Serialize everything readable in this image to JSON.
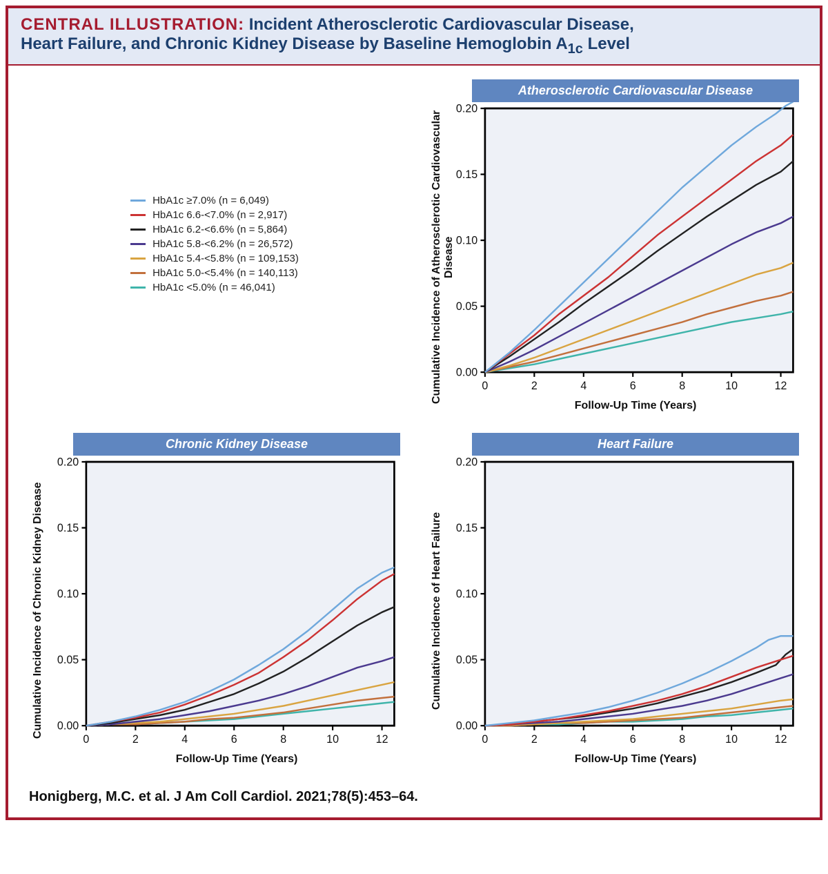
{
  "title": {
    "lead": "CENTRAL ILLUSTRATION:",
    "rest_line1": " Incident Atherosclerotic Cardiovascular Disease,",
    "rest_line2": "Heart Failure, and Chronic Kidney Disease by Baseline Hemoglobin A",
    "sub": "1c",
    "rest_line2_end": " Level"
  },
  "legend": {
    "items": [
      {
        "label": "HbA1c ≥7.0% (n = 6,049)",
        "color": "#6fa8dc"
      },
      {
        "label": "HbA1c 6.6-<7.0% (n = 2,917)",
        "color": "#cc3333"
      },
      {
        "label": "HbA1c 6.2-<6.6% (n = 5,864)",
        "color": "#222222"
      },
      {
        "label": "HbA1c 5.8-<6.2% (n = 26,572)",
        "color": "#4b3a8f"
      },
      {
        "label": "HbA1c 5.4-<5.8% (n = 109,153)",
        "color": "#d9a441"
      },
      {
        "label": "HbA1c 5.0-<5.4% (n = 140,113)",
        "color": "#c2703d"
      },
      {
        "label": "HbA1c <5.0% (n = 46,041)",
        "color": "#3fb4aa"
      }
    ]
  },
  "axis": {
    "xlabel": "Follow-Up Time (Years)",
    "xlim": [
      0,
      12.5
    ],
    "xticks": [
      0,
      2,
      4,
      6,
      8,
      10,
      12
    ],
    "ylim": [
      0,
      0.2
    ],
    "yticks": [
      0.0,
      0.05,
      0.1,
      0.15,
      0.2
    ],
    "ytick_labels": [
      "0.00",
      "0.05",
      "0.10",
      "0.15",
      "0.20"
    ]
  },
  "style": {
    "plot_bg": "#eef1f7",
    "axis_color": "#000000",
    "line_width": 2.2,
    "panel_header_bg": "#5f86c0",
    "panel_header_fg": "#ffffff",
    "frame_border": "#a51c30",
    "title_bg": "#e3e9f5",
    "tick_len": 6
  },
  "panels": {
    "ascvd": {
      "header": "Atherosclerotic Cardiovascular Disease",
      "ylabel": "Cumulative Incidence of Atherosclerotic Cardiovascular Disease",
      "series": [
        {
          "color": "#6fa8dc",
          "x": [
            0,
            1,
            2,
            3,
            4,
            5,
            6,
            7,
            8,
            9,
            10,
            11,
            11.8,
            12.2,
            12.5
          ],
          "y": [
            0,
            0.015,
            0.032,
            0.05,
            0.068,
            0.086,
            0.104,
            0.122,
            0.14,
            0.156,
            0.172,
            0.186,
            0.196,
            0.202,
            0.205
          ]
        },
        {
          "color": "#cc3333",
          "x": [
            0,
            1,
            2,
            3,
            4,
            5,
            6,
            7,
            8,
            9,
            10,
            11,
            12,
            12.5
          ],
          "y": [
            0,
            0.014,
            0.028,
            0.044,
            0.058,
            0.072,
            0.088,
            0.104,
            0.118,
            0.132,
            0.146,
            0.16,
            0.172,
            0.18
          ]
        },
        {
          "color": "#222222",
          "x": [
            0,
            1,
            2,
            3,
            4,
            5,
            6,
            7,
            8,
            9,
            10,
            11,
            12,
            12.5
          ],
          "y": [
            0,
            0.012,
            0.025,
            0.038,
            0.052,
            0.065,
            0.078,
            0.092,
            0.105,
            0.118,
            0.13,
            0.142,
            0.152,
            0.16
          ]
        },
        {
          "color": "#4b3a8f",
          "x": [
            0,
            1,
            2,
            3,
            4,
            5,
            6,
            7,
            8,
            9,
            10,
            11,
            12,
            12.5
          ],
          "y": [
            0,
            0.008,
            0.017,
            0.027,
            0.037,
            0.047,
            0.057,
            0.067,
            0.077,
            0.087,
            0.097,
            0.106,
            0.113,
            0.118
          ]
        },
        {
          "color": "#d9a441",
          "x": [
            0,
            1,
            2,
            3,
            4,
            5,
            6,
            7,
            8,
            9,
            10,
            11,
            12,
            12.5
          ],
          "y": [
            0,
            0.005,
            0.011,
            0.018,
            0.025,
            0.032,
            0.039,
            0.046,
            0.053,
            0.06,
            0.067,
            0.074,
            0.079,
            0.083
          ]
        },
        {
          "color": "#c2703d",
          "x": [
            0,
            1,
            2,
            3,
            4,
            5,
            6,
            7,
            8,
            9,
            10,
            11,
            12,
            12.5
          ],
          "y": [
            0,
            0.004,
            0.008,
            0.013,
            0.018,
            0.023,
            0.028,
            0.033,
            0.038,
            0.044,
            0.049,
            0.054,
            0.058,
            0.061
          ]
        },
        {
          "color": "#3fb4aa",
          "x": [
            0,
            1,
            2,
            3,
            4,
            5,
            6,
            7,
            8,
            9,
            10,
            11,
            12,
            12.5
          ],
          "y": [
            0,
            0.003,
            0.006,
            0.01,
            0.014,
            0.018,
            0.022,
            0.026,
            0.03,
            0.034,
            0.038,
            0.041,
            0.044,
            0.046
          ]
        }
      ]
    },
    "ckd": {
      "header": "Chronic Kidney Disease",
      "ylabel": "Cumulative Incidence of Chronic Kidney Disease",
      "series": [
        {
          "color": "#6fa8dc",
          "x": [
            0,
            1,
            2,
            3,
            4,
            5,
            6,
            7,
            8,
            9,
            10,
            11,
            12,
            12.5
          ],
          "y": [
            0,
            0.003,
            0.007,
            0.012,
            0.018,
            0.026,
            0.035,
            0.046,
            0.058,
            0.072,
            0.088,
            0.104,
            0.116,
            0.12
          ]
        },
        {
          "color": "#cc3333",
          "x": [
            0,
            1,
            2,
            3,
            4,
            5,
            6,
            7,
            8,
            9,
            10,
            11,
            12,
            12.5
          ],
          "y": [
            0,
            0.003,
            0.006,
            0.01,
            0.016,
            0.023,
            0.031,
            0.04,
            0.052,
            0.065,
            0.08,
            0.096,
            0.11,
            0.115
          ]
        },
        {
          "color": "#222222",
          "x": [
            0,
            1,
            2,
            3,
            4,
            5,
            6,
            7,
            8,
            9,
            10,
            11,
            12,
            12.5
          ],
          "y": [
            0,
            0.002,
            0.005,
            0.008,
            0.012,
            0.018,
            0.024,
            0.032,
            0.041,
            0.052,
            0.064,
            0.076,
            0.086,
            0.09
          ]
        },
        {
          "color": "#4b3a8f",
          "x": [
            0,
            1,
            2,
            3,
            4,
            5,
            6,
            7,
            8,
            9,
            10,
            11,
            12,
            12.5
          ],
          "y": [
            0,
            0.001,
            0.003,
            0.005,
            0.008,
            0.011,
            0.015,
            0.019,
            0.024,
            0.03,
            0.037,
            0.044,
            0.049,
            0.052
          ]
        },
        {
          "color": "#d9a441",
          "x": [
            0,
            1,
            2,
            3,
            4,
            5,
            6,
            7,
            8,
            9,
            10,
            11,
            12,
            12.5
          ],
          "y": [
            0,
            0.001,
            0.002,
            0.003,
            0.005,
            0.007,
            0.009,
            0.012,
            0.015,
            0.019,
            0.023,
            0.027,
            0.031,
            0.033
          ]
        },
        {
          "color": "#c2703d",
          "x": [
            0,
            1,
            2,
            3,
            4,
            5,
            6,
            7,
            8,
            9,
            10,
            11,
            12,
            12.5
          ],
          "y": [
            0,
            0.001,
            0.001,
            0.002,
            0.003,
            0.005,
            0.006,
            0.008,
            0.01,
            0.013,
            0.016,
            0.019,
            0.021,
            0.022
          ]
        },
        {
          "color": "#3fb4aa",
          "x": [
            0,
            1,
            2,
            3,
            4,
            5,
            6,
            7,
            8,
            9,
            10,
            11,
            12,
            12.5
          ],
          "y": [
            0,
            0.001,
            0.001,
            0.002,
            0.003,
            0.004,
            0.005,
            0.007,
            0.009,
            0.011,
            0.013,
            0.015,
            0.017,
            0.018
          ]
        }
      ]
    },
    "hf": {
      "header": "Heart Failure",
      "ylabel": "Cumulative Incidence of Heart Failure",
      "series": [
        {
          "color": "#6fa8dc",
          "x": [
            0,
            1,
            2,
            3,
            4,
            5,
            6,
            7,
            8,
            9,
            10,
            11,
            11.5,
            12,
            12.5
          ],
          "y": [
            0,
            0.002,
            0.004,
            0.007,
            0.01,
            0.014,
            0.019,
            0.025,
            0.032,
            0.04,
            0.049,
            0.059,
            0.065,
            0.068,
            0.068
          ]
        },
        {
          "color": "#cc3333",
          "x": [
            0,
            1,
            2,
            3,
            4,
            5,
            6,
            7,
            8,
            9,
            10,
            11,
            12,
            12.5
          ],
          "y": [
            0,
            0.001,
            0.003,
            0.005,
            0.008,
            0.011,
            0.015,
            0.019,
            0.024,
            0.03,
            0.037,
            0.044,
            0.05,
            0.053
          ]
        },
        {
          "color": "#222222",
          "x": [
            0,
            1,
            2,
            3,
            4,
            5,
            6,
            7,
            8,
            9,
            10,
            11,
            11.8,
            12.2,
            12.5
          ],
          "y": [
            0,
            0.001,
            0.003,
            0.005,
            0.007,
            0.01,
            0.013,
            0.017,
            0.022,
            0.027,
            0.033,
            0.04,
            0.046,
            0.054,
            0.058
          ]
        },
        {
          "color": "#4b3a8f",
          "x": [
            0,
            1,
            2,
            3,
            4,
            5,
            6,
            7,
            8,
            9,
            10,
            11,
            12,
            12.5
          ],
          "y": [
            0,
            0.001,
            0.002,
            0.003,
            0.005,
            0.007,
            0.009,
            0.012,
            0.015,
            0.019,
            0.024,
            0.03,
            0.036,
            0.039
          ]
        },
        {
          "color": "#d9a441",
          "x": [
            0,
            1,
            2,
            3,
            4,
            5,
            6,
            7,
            8,
            9,
            10,
            11,
            12,
            12.5
          ],
          "y": [
            0,
            0.001,
            0.001,
            0.002,
            0.003,
            0.004,
            0.005,
            0.007,
            0.009,
            0.011,
            0.013,
            0.016,
            0.019,
            0.02
          ]
        },
        {
          "color": "#c2703d",
          "x": [
            0,
            1,
            2,
            3,
            4,
            5,
            6,
            7,
            8,
            9,
            10,
            11,
            12,
            12.5
          ],
          "y": [
            0,
            0.0,
            0.001,
            0.002,
            0.002,
            0.003,
            0.004,
            0.005,
            0.006,
            0.008,
            0.01,
            0.012,
            0.014,
            0.015
          ]
        },
        {
          "color": "#3fb4aa",
          "x": [
            0,
            1,
            2,
            3,
            4,
            5,
            6,
            7,
            8,
            9,
            10,
            11,
            12,
            12.5
          ],
          "y": [
            0,
            0.0,
            0.001,
            0.001,
            0.002,
            0.003,
            0.003,
            0.004,
            0.005,
            0.007,
            0.008,
            0.01,
            0.012,
            0.013
          ]
        }
      ]
    }
  },
  "citation": "Honigberg, M.C. et al. J Am Coll Cardiol. 2021;78(5):453–64."
}
